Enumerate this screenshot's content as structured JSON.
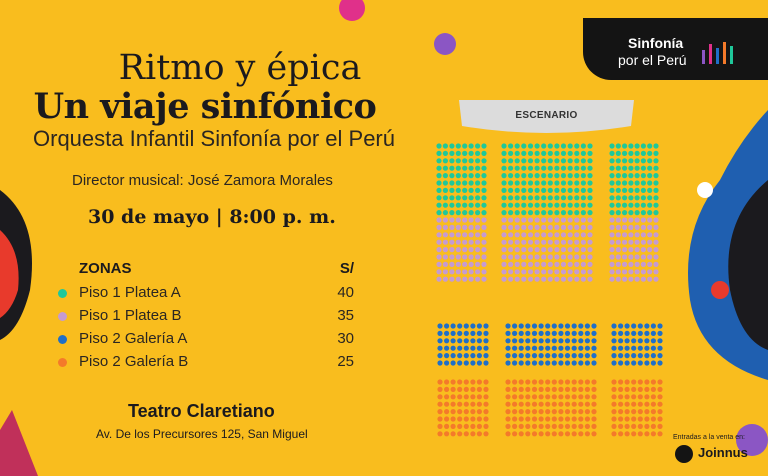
{
  "event": {
    "title_line1": "Ritmo y épica",
    "title_line2": "Un viaje sinfónico",
    "subtitle": "Orquesta Infantil Sinfonía por el Perú",
    "director": "Director musical: José Zamora Morales",
    "datetime": "30 de mayo | 8:00 p. m."
  },
  "zones": {
    "header_label": "ZONAS",
    "currency": "S/",
    "items": [
      {
        "name": "Piso 1 Platea A",
        "price": "40",
        "color": "#1fc89a"
      },
      {
        "name": "Piso 1 Platea B",
        "price": "35",
        "color": "#c59bd1"
      },
      {
        "name": "Piso 2 Galería A",
        "price": "30",
        "color": "#1f6fc8"
      },
      {
        "name": "Piso 2 Galería B",
        "price": "25",
        "color": "#f47a2a"
      }
    ]
  },
  "venue": {
    "name": "Teatro Claretiano",
    "address": "Av. De los Precursores 125, San Miguel"
  },
  "brand": {
    "line1": "Sinfonía",
    "line2": "por el Perú"
  },
  "tickets": {
    "sale_label": "Entradas a la venta en:",
    "vendor": "Joinnus"
  },
  "seat_map": {
    "stage_label": "ESCENARIO"
  },
  "colors": {
    "background": "#f9bd1e",
    "platea_a": "#1fc89a",
    "platea_b": "#c59bd1",
    "galeria_a": "#1f6fc8",
    "galeria_b": "#f47a2a"
  }
}
